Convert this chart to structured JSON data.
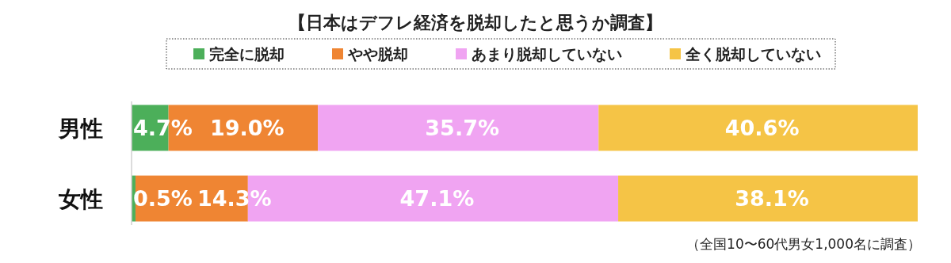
{
  "chart_data": {
    "type": "bar",
    "title": "【日本はデフレ経済を脱却したと思うか調査】",
    "orientation": "horizontal",
    "stacked": true,
    "categories": [
      "男性",
      "女性"
    ],
    "series": [
      {
        "name": "完全に脱却",
        "color": "#4caf5a",
        "values": [
          4.7,
          0.5
        ],
        "value_labels": [
          "4.7%",
          "0.5%"
        ]
      },
      {
        "name": "やや脱却",
        "color": "#ef8533",
        "values": [
          19.0,
          14.3
        ],
        "value_labels": [
          "19.0%",
          "14.3%"
        ]
      },
      {
        "name": "あまり脱却していない",
        "color": "#f0a4f2",
        "values": [
          35.7,
          47.1
        ],
        "value_labels": [
          "35.7%",
          "47.1%"
        ]
      },
      {
        "name": "全く脱却していない",
        "color": "#f5c446",
        "values": [
          40.6,
          38.1
        ],
        "value_labels": [
          "40.6%",
          "38.1%"
        ]
      }
    ],
    "tick_labels": "y",
    "legend": "top",
    "annotations": [
      "（全国10〜60代男女1,000名に調査）"
    ]
  }
}
